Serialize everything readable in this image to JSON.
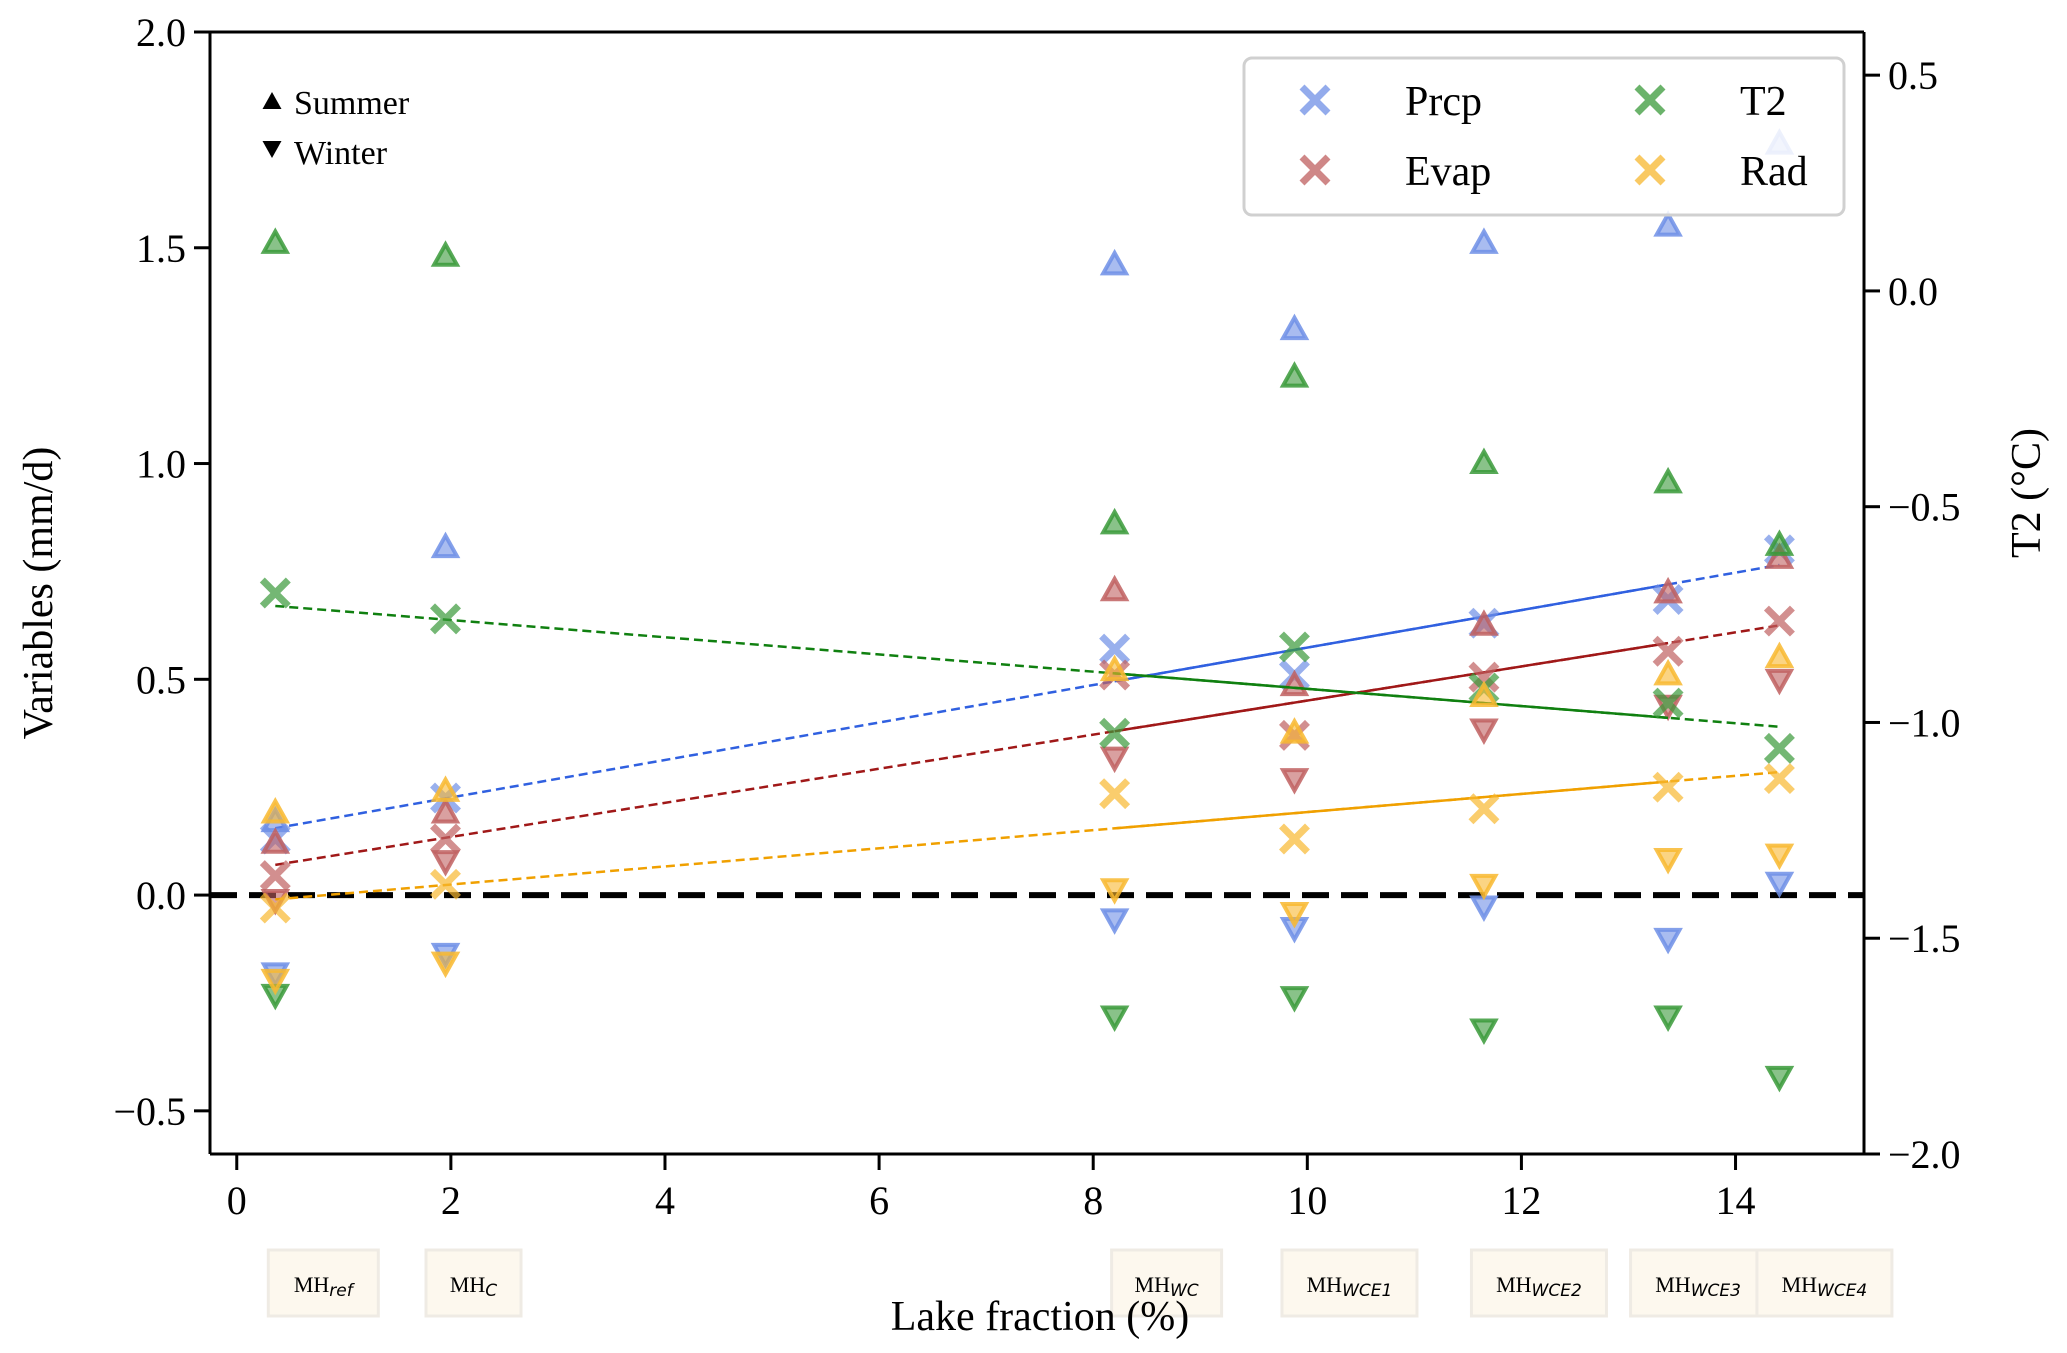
{
  "chart_data": {
    "type": "scatter",
    "title": "",
    "xlabel": "Lake fraction (%)",
    "ylabel": "Variables (mm/d)",
    "ylabel_right": "T2 (°C)",
    "xlim": [
      -0.25,
      15.2
    ],
    "ylim": [
      -0.6,
      2.0
    ],
    "ylim_right": [
      -2.0,
      0.6
    ],
    "xticks": [
      0,
      2,
      4,
      6,
      8,
      10,
      12,
      14
    ],
    "xtick_labels": [
      "0",
      "2",
      "4",
      "6",
      "8",
      "10",
      "12",
      "14"
    ],
    "yticks": [
      -0.5,
      0.0,
      0.5,
      1.0,
      1.5,
      2.0
    ],
    "ytick_labels": [
      "−0.5",
      "0.0",
      "0.5",
      "1.0",
      "1.5",
      "2.0"
    ],
    "yticks_right": [
      -2.0,
      -1.5,
      -1.0,
      -0.5,
      0.0,
      0.5
    ],
    "ytick_labels_right": [
      "−2.0",
      "−1.5",
      "−1.0",
      "−0.5",
      "0.0",
      "0.5"
    ],
    "grid": false,
    "zero_line": 0.0,
    "experiments": [
      {
        "name": "MH",
        "sub": "ref",
        "x": 0.36
      },
      {
        "name": "MH",
        "sub": "C",
        "x": 1.95
      },
      {
        "name": "MH",
        "sub": "WC",
        "x": 8.2
      },
      {
        "name": "MH",
        "sub": "WCE1",
        "x": 9.88
      },
      {
        "name": "MH",
        "sub": "WCE2",
        "x": 11.65
      },
      {
        "name": "MH",
        "sub": "WCE3",
        "x": 13.37
      },
      {
        "name": "MH",
        "sub": "WCE4",
        "x": 14.41
      }
    ],
    "series": [
      {
        "name": "Prcp",
        "axis": "left",
        "color": "#6f8fe6",
        "line_color": "#3060e0",
        "annual": [
          0.13,
          0.225,
          0.57,
          0.51,
          0.63,
          0.685,
          0.8
        ],
        "summer": [
          0.17,
          0.805,
          1.46,
          1.31,
          1.51,
          1.55,
          1.74
        ],
        "winter": [
          -0.18,
          -0.135,
          -0.055,
          -0.075,
          -0.025,
          -0.1,
          0.03
        ],
        "fit": {
          "x": [
            0.36,
            14.41
          ],
          "y": [
            0.155,
            0.765
          ],
          "solid_from": 8.2,
          "solid_to": 13.37
        }
      },
      {
        "name": "Evap",
        "axis": "left",
        "color": "#c06060",
        "line_color": "#a01818",
        "annual": [
          0.045,
          0.13,
          0.51,
          0.37,
          0.505,
          0.565,
          0.635
        ],
        "summer": [
          0.12,
          0.19,
          0.705,
          0.485,
          0.625,
          0.7,
          0.78
        ],
        "winter": [
          -0.01,
          0.08,
          0.32,
          0.27,
          0.385,
          0.44,
          0.5
        ],
        "fit": {
          "x": [
            0.36,
            14.41
          ],
          "y": [
            0.07,
            0.625
          ],
          "solid_from": 8.2,
          "solid_to": 13.37
        }
      },
      {
        "name": "T2",
        "axis": "right",
        "color": "#3a9a3a",
        "line_color": "#108010",
        "annual": [
          -0.7,
          -0.76,
          -1.025,
          -0.825,
          -0.92,
          -0.955,
          -1.06
        ],
        "summer": [
          0.11,
          0.08,
          -0.54,
          -0.2,
          -0.4,
          -0.445,
          -0.59
        ],
        "winter": [
          -1.63,
          null,
          -1.68,
          -1.635,
          -1.71,
          -1.68,
          -1.82
        ],
        "fit": {
          "x": [
            0.36,
            14.41
          ],
          "y": [
            -0.73,
            -1.01
          ],
          "solid_from": 8.2,
          "solid_to": 13.37
        }
      },
      {
        "name": "Rad",
        "axis": "left",
        "color": "#f8b830",
        "line_color": "#f0a000",
        "annual": [
          -0.03,
          0.025,
          0.235,
          0.13,
          0.2,
          0.25,
          0.27
        ],
        "summer": [
          0.19,
          0.24,
          0.52,
          0.375,
          0.46,
          0.51,
          0.55
        ],
        "winter": [
          -0.195,
          -0.155,
          0.015,
          -0.04,
          0.025,
          0.085,
          0.095
        ],
        "fit": {
          "x": [
            0.36,
            14.41
          ],
          "y": [
            -0.01,
            0.285
          ],
          "solid_from": 8.2,
          "solid_to": 13.37
        }
      }
    ],
    "legend": {
      "placement": "top-right",
      "entries": [
        "Prcp",
        "Evap",
        "T2",
        "Rad"
      ]
    },
    "season_legend": {
      "placement": "top-left",
      "entries": [
        {
          "marker": "triangle-up",
          "label": "Summer"
        },
        {
          "marker": "triangle-down",
          "label": "Winter"
        }
      ]
    }
  }
}
